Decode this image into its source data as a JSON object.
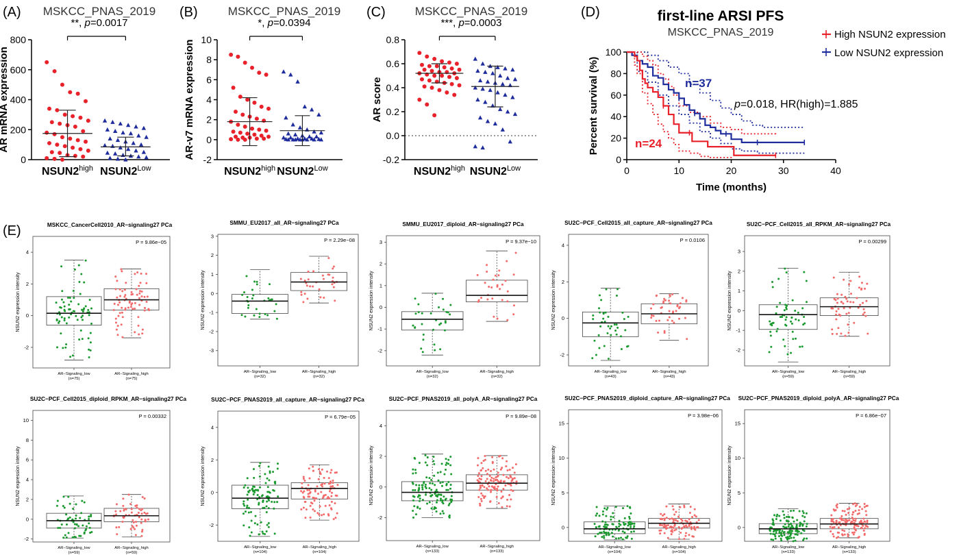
{
  "colors": {
    "high": "#e8212a",
    "low": "#1e2c9c",
    "green": "#1a9a2e",
    "pink": "#f46a6a",
    "black": "#111111"
  },
  "panels_top": [
    {
      "label": "(A)",
      "title": "MSKCC_PNAS_2019",
      "ylabel": "AR mRNA expression",
      "sig": "**, p=0.0017",
      "sig_stars": "**, ",
      "sig_p": "p",
      "sig_val": "=0.0017",
      "ylim": [
        0,
        800
      ],
      "yticks": [
        "0",
        "200",
        "400",
        "600",
        "800"
      ],
      "zero_line": false,
      "groups": [
        {
          "name": "NSUN2",
          "sup": "high",
          "marker": "circle",
          "mean": 175,
          "sd_low": 20,
          "sd_high": 330
        },
        {
          "name": "NSUN2",
          "sup": "Low",
          "marker": "triangle",
          "mean": 85,
          "sd_low": 25,
          "sd_high": 150
        }
      ]
    },
    {
      "label": "(B)",
      "title": "MSKCC_PNAS_2019",
      "ylabel": "AR-v7 mRNA expression",
      "sig": "*, p=0.0394",
      "sig_stars": "*, ",
      "sig_p": "p",
      "sig_val": "=0.0394",
      "ylim": [
        -2,
        10
      ],
      "yticks": [
        "-2",
        "0",
        "2",
        "4",
        "6",
        "8",
        "10"
      ],
      "zero_line": false,
      "groups": [
        {
          "name": "NSUN2",
          "sup": "high",
          "marker": "circle",
          "mean": 1.8,
          "sd_low": -0.6,
          "sd_high": 4.2
        },
        {
          "name": "NSUN2",
          "sup": "Low",
          "marker": "triangle",
          "mean": 0.9,
          "sd_low": -0.6,
          "sd_high": 2.4
        }
      ]
    },
    {
      "label": "(C)",
      "title": "MSKCC_PNAS_2019",
      "ylabel": "AR score",
      "sig": "***, p=0.0003",
      "sig_stars": "***, ",
      "sig_p": "p",
      "sig_val": "=0.0003",
      "ylim": [
        -0.2,
        0.8
      ],
      "yticks": [
        "-0.2",
        "0.0",
        "0.2",
        "0.4",
        "0.6",
        "0.8"
      ],
      "zero_line": true,
      "groups": [
        {
          "name": "NSUN2",
          "sup": "high",
          "marker": "circle",
          "mean": 0.52,
          "sd_low": 0.44,
          "sd_high": 0.6
        },
        {
          "name": "NSUN2",
          "sup": "Low",
          "marker": "triangle",
          "mean": 0.41,
          "sd_low": 0.24,
          "sd_high": 0.58
        }
      ]
    }
  ],
  "panel_d": {
    "label": "(D)",
    "title": "first-line ARSI PFS",
    "subtitle": "MSKCC_PNAS_2019",
    "ylabel": "Percent survival (%)",
    "xlabel": "Time (months)",
    "xlim": [
      0,
      40
    ],
    "ylim": [
      0,
      100
    ],
    "xticks": [
      "0",
      "10",
      "20",
      "30",
      "40"
    ],
    "yticks": [
      "0",
      "20",
      "40",
      "60",
      "80",
      "100"
    ],
    "legend": [
      "High NSUN2 expression",
      "Low NSUN2 expression"
    ],
    "n_high": "n=24",
    "n_low": "n=37",
    "stat_p": "p",
    "stat_rest": "=0.018, HR(high)=1.885",
    "high_steps": [
      [
        0,
        100
      ],
      [
        1.5,
        96
      ],
      [
        2,
        92
      ],
      [
        2.5,
        83
      ],
      [
        3,
        75
      ],
      [
        3.5,
        71
      ],
      [
        4,
        67
      ],
      [
        5,
        63
      ],
      [
        6,
        58
      ],
      [
        7,
        50
      ],
      [
        8,
        42
      ],
      [
        9,
        33
      ],
      [
        10,
        25
      ],
      [
        12,
        25
      ],
      [
        12.5,
        17
      ],
      [
        15,
        17
      ],
      [
        15.5,
        12
      ],
      [
        20,
        12
      ],
      [
        20.5,
        4
      ],
      [
        28.5,
        4
      ]
    ],
    "high_upper": [
      [
        0,
        100
      ],
      [
        2,
        100
      ],
      [
        3,
        96
      ],
      [
        4,
        92
      ],
      [
        5,
        88
      ],
      [
        6,
        80
      ],
      [
        7,
        75
      ],
      [
        8,
        68
      ],
      [
        9,
        60
      ],
      [
        10,
        50
      ],
      [
        12,
        44
      ],
      [
        14,
        40
      ],
      [
        16,
        34
      ],
      [
        18,
        30
      ],
      [
        20,
        28
      ],
      [
        22,
        24
      ],
      [
        28.5,
        22
      ]
    ],
    "high_lower": [
      [
        0,
        100
      ],
      [
        1.5,
        88
      ],
      [
        2,
        80
      ],
      [
        3,
        62
      ],
      [
        4,
        52
      ],
      [
        5,
        42
      ],
      [
        6,
        33
      ],
      [
        7,
        26
      ],
      [
        8,
        20
      ],
      [
        9,
        14
      ],
      [
        10,
        8
      ],
      [
        12,
        6
      ],
      [
        14,
        3
      ],
      [
        16,
        2
      ],
      [
        20,
        0
      ]
    ],
    "low_steps": [
      [
        0,
        100
      ],
      [
        1,
        97
      ],
      [
        2,
        92
      ],
      [
        3,
        89
      ],
      [
        4,
        86
      ],
      [
        5,
        78
      ],
      [
        6,
        76
      ],
      [
        7,
        70
      ],
      [
        8,
        65
      ],
      [
        9,
        62
      ],
      [
        10,
        57
      ],
      [
        11,
        51
      ],
      [
        12,
        46
      ],
      [
        13,
        43
      ],
      [
        14,
        38
      ],
      [
        15,
        32
      ],
      [
        16,
        30
      ],
      [
        17,
        27
      ],
      [
        18,
        24
      ],
      [
        20,
        19
      ],
      [
        22,
        16
      ],
      [
        25,
        16
      ],
      [
        34,
        16
      ]
    ],
    "low_upper": [
      [
        0,
        100
      ],
      [
        2,
        100
      ],
      [
        4,
        97
      ],
      [
        6,
        92
      ],
      [
        8,
        86
      ],
      [
        10,
        80
      ],
      [
        12,
        70
      ],
      [
        14,
        62
      ],
      [
        16,
        55
      ],
      [
        18,
        48
      ],
      [
        20,
        42
      ],
      [
        22,
        36
      ],
      [
        24,
        32
      ],
      [
        26,
        30
      ],
      [
        28,
        30
      ],
      [
        34,
        30
      ]
    ],
    "low_lower": [
      [
        0,
        100
      ],
      [
        2,
        82
      ],
      [
        4,
        72
      ],
      [
        6,
        60
      ],
      [
        8,
        50
      ],
      [
        10,
        42
      ],
      [
        12,
        34
      ],
      [
        14,
        26
      ],
      [
        16,
        20
      ],
      [
        18,
        15
      ],
      [
        20,
        10
      ],
      [
        22,
        8
      ],
      [
        25,
        6
      ],
      [
        34,
        6
      ]
    ]
  },
  "panel_e_label": "(E)",
  "box_plots": [
    {
      "title": "MSKCC_CancerCell2010_AR−signaling27 PCa",
      "p": "P = 9.86e−05",
      "ylabel": "NSUN2 expression intensity",
      "yticks": [
        -2,
        0,
        2,
        4
      ],
      "ylim": [
        -3.3,
        5.0
      ],
      "low": {
        "label": "AR−Signaling_low",
        "n": "(n=75)",
        "q1": -0.6,
        "med": 0.15,
        "q3": 1.2,
        "wlo": -2.8,
        "whi": 3.5,
        "count": 75
      },
      "high": {
        "label": "AR−Signaling_high",
        "n": "(n=75)",
        "q1": 0.35,
        "med": 1.0,
        "q3": 1.7,
        "wlo": -1.4,
        "whi": 2.95,
        "count": 75
      }
    },
    {
      "title": "SMMU_EU2017_all_AR−signaling27 PCa",
      "p": "P = 2.29e−08",
      "ylabel": "NSUN2 expression intensity",
      "yticks": [
        -3,
        -2,
        -1,
        0,
        1,
        2,
        3
      ],
      "ylim": [
        -3.8,
        3.1
      ],
      "low": {
        "label": "AR−Signaling_low",
        "n": "(n=32)",
        "q1": -1.05,
        "med": -0.4,
        "q3": -0.05,
        "wlo": -1.35,
        "whi": 1.25,
        "count": 32
      },
      "high": {
        "label": "AR−Signaling_high",
        "n": "(n=32)",
        "q1": 0.15,
        "med": 0.6,
        "q3": 1.1,
        "wlo": -0.5,
        "whi": 1.95,
        "count": 32
      }
    },
    {
      "title": "SMMU_EU2017_diploid_AR−signaling27 PCa",
      "p": "P = 9.37e−10",
      "ylabel": "NSUN2 expression intensity",
      "yticks": [
        -2,
        -1,
        0,
        1,
        2,
        3
      ],
      "ylim": [
        -2.7,
        3.3
      ],
      "low": {
        "label": "AR−Signaling_low",
        "n": "(n=32)",
        "q1": -1.05,
        "med": -0.55,
        "q3": -0.2,
        "wlo": -2.2,
        "whi": 0.65,
        "count": 32
      },
      "high": {
        "label": "AR−Signaling_high",
        "n": "(n=32)",
        "q1": 0.25,
        "med": 0.55,
        "q3": 1.25,
        "wlo": -0.65,
        "whi": 2.6,
        "count": 32
      }
    },
    {
      "title": "SU2C−PCF_Cell2015_all_capture_AR−signaling27 PCa",
      "p": "P = 0.0106",
      "ylabel": "NSUN2 expression intensity",
      "yticks": [
        -2,
        0,
        2,
        4
      ],
      "ylim": [
        -2.6,
        4.6
      ],
      "low": {
        "label": "AR−Signaling_low",
        "n": "(n=43)",
        "q1": -1.0,
        "med": -0.25,
        "q3": 0.35,
        "wlo": -2.3,
        "whi": 1.65,
        "count": 43
      },
      "high": {
        "label": "AR−Signaling_high",
        "n": "(n=43)",
        "q1": -0.3,
        "med": 0.25,
        "q3": 0.8,
        "wlo": -1.2,
        "whi": 1.35,
        "count": 43
      }
    },
    {
      "title": "SU2C−PCF_Cell2015_all_RPKM_AR−signaling27 PCa",
      "p": "P = 0.00299",
      "ylabel": "NSUN2 expression intensity",
      "yticks": [
        -2,
        -1,
        0,
        1,
        2,
        3
      ],
      "ylim": [
        -2.8,
        3.8
      ],
      "low": {
        "label": "AR−Signaling_low",
        "n": "(n=59)",
        "q1": -0.95,
        "med": -0.2,
        "q3": 0.3,
        "wlo": -2.6,
        "whi": 2.15,
        "count": 59
      },
      "high": {
        "label": "AR−Signaling_high",
        "n": "(n=59)",
        "q1": -0.25,
        "med": 0.2,
        "q3": 0.65,
        "wlo": -1.3,
        "whi": 1.95,
        "count": 59
      }
    },
    {
      "title": "SU2C−PCF_Cell2015_diploid_RPKM_AR−signaling27 PCa",
      "p": "P = 0.00332",
      "ylabel": "NSUN2 expression intensity",
      "yticks": [
        -2,
        0,
        2,
        4,
        6,
        8,
        10
      ],
      "ylim": [
        -2.3,
        11.0
      ],
      "low": {
        "label": "AR−Signaling_low",
        "n": "(n=59)",
        "q1": -0.9,
        "med": -0.15,
        "q3": 0.6,
        "wlo": -1.9,
        "whi": 2.35,
        "count": 59
      },
      "high": {
        "label": "AR−Signaling_high",
        "n": "(n=59)",
        "q1": -0.25,
        "med": 0.35,
        "q3": 1.1,
        "wlo": -1.8,
        "whi": 2.5,
        "count": 59
      }
    },
    {
      "title": "SU2C−PCF_PNAS2019_all_capture_AR−signaling27 PCa",
      "p": "P = 6.79e−05",
      "ylabel": "NSUN2 expression intensity",
      "yticks": [
        -2,
        0,
        2,
        4
      ],
      "ylim": [
        -3.0,
        5.0
      ],
      "low": {
        "label": "AR−Signaling_low",
        "n": "(n=104)",
        "q1": -1.0,
        "med": -0.35,
        "q3": 0.45,
        "wlo": -2.7,
        "whi": 1.85,
        "count": 104
      },
      "high": {
        "label": "AR−Signaling_high",
        "n": "(n=104)",
        "q1": -0.4,
        "med": 0.25,
        "q3": 0.6,
        "wlo": -1.7,
        "whi": 1.7,
        "count": 104
      }
    },
    {
      "title": "SU2C−PCF_PNAS2019_all_polyA_AR−signaling27 PCa",
      "p": "P = 9.89e−08",
      "ylabel": "NSUN2 expression intensity",
      "yticks": [
        -2,
        0,
        2,
        4
      ],
      "ylim": [
        -3.5,
        5.0
      ],
      "low": {
        "label": "AR−Signaling_low",
        "n": "(n=133)",
        "q1": -0.9,
        "med": -0.35,
        "q3": 0.35,
        "wlo": -2.0,
        "whi": 2.15,
        "count": 133
      },
      "high": {
        "label": "AR−Signaling_high",
        "n": "(n=133)",
        "q1": -0.2,
        "med": 0.25,
        "q3": 0.8,
        "wlo": -1.4,
        "whi": 2.05,
        "count": 133
      }
    },
    {
      "title": "SU2C−PCF_PNAS2019_diploid_capture_AR−signaling27 PCa",
      "p": "P = 3.98e−06",
      "ylabel": "NSUN2 expression intensity",
      "yticks": [
        0,
        5,
        10,
        15
      ],
      "ylim": [
        -2.0,
        17.0
      ],
      "low": {
        "label": "AR−Signaling_low",
        "n": "(n=104)",
        "q1": -0.9,
        "med": -0.2,
        "q3": 0.8,
        "wlo": -1.8,
        "whi": 3.1,
        "count": 104
      },
      "high": {
        "label": "AR−Signaling_high",
        "n": "(n=104)",
        "q1": -0.1,
        "med": 0.6,
        "q3": 1.3,
        "wlo": -1.7,
        "whi": 3.4,
        "count": 104
      }
    },
    {
      "title": "SU2C−PCF_PNAS2019_diploid_polyA_AR−signaling27 PCa",
      "p": "P = 6.86e−07",
      "ylabel": "NSUN2 expression intensity",
      "yticks": [
        0,
        5,
        10,
        15
      ],
      "ylim": [
        -2.0,
        17.0
      ],
      "low": {
        "label": "AR−Signaling_low",
        "n": "(n=133)",
        "q1": -0.9,
        "med": -0.2,
        "q3": 0.55,
        "wlo": -2.0,
        "whi": 2.7,
        "count": 133
      },
      "high": {
        "label": "AR−Signaling_high",
        "n": "(n=133)",
        "q1": -0.2,
        "med": 0.5,
        "q3": 1.3,
        "wlo": -1.5,
        "whi": 3.5,
        "count": 133
      }
    }
  ],
  "chart_data": [
    {
      "type": "scatter",
      "panel": "(A)",
      "title": "MSKCC_PNAS_2019",
      "ylabel": "AR mRNA expression",
      "ylim": [
        0,
        800
      ],
      "categories": [
        "NSUN2high",
        "NSUN2Low"
      ],
      "series": [
        {
          "name": "NSUN2high",
          "values": [
            650,
            590,
            500,
            450,
            440,
            390,
            340,
            330,
            300,
            290,
            280,
            260,
            250,
            240,
            230,
            220,
            190,
            180,
            170,
            150,
            140,
            130,
            120,
            110,
            100,
            90,
            80,
            70,
            60,
            50,
            45,
            30,
            25,
            20,
            10,
            5,
            0
          ]
        },
        {
          "name": "NSUN2Low",
          "values": [
            260,
            250,
            240,
            230,
            220,
            210,
            200,
            190,
            180,
            175,
            160,
            150,
            140,
            130,
            120,
            110,
            100,
            95,
            90,
            80,
            70,
            60,
            50,
            45,
            40,
            30,
            25,
            20,
            15,
            10,
            5,
            0
          ]
        }
      ]
    },
    {
      "type": "scatter",
      "panel": "(B)",
      "title": "MSKCC_PNAS_2019",
      "ylabel": "AR-v7 mRNA expression",
      "ylim": [
        -2,
        10
      ],
      "categories": [
        "NSUN2high",
        "NSUN2Low"
      ],
      "series": [
        {
          "name": "NSUN2high",
          "values": [
            8.5,
            8.3,
            7.7,
            7.2,
            6.7,
            6.5,
            5.2,
            4.3,
            4.0,
            3.7,
            3.3,
            3.1,
            2.8,
            2.5,
            2.3,
            2.1,
            1.9,
            1.8,
            1.5,
            1.3,
            1.1,
            1.0,
            0.9,
            0.8,
            0.7,
            0.6,
            0.5,
            0.4,
            0.3,
            0.3,
            0.2,
            0.2,
            0.1,
            0.1,
            0.05,
            0.0,
            0.0
          ]
        },
        {
          "name": "NSUN2Low",
          "values": [
            6.8,
            6.5,
            5.8,
            3.3,
            3.0,
            2.5,
            2.2,
            1.5,
            1.2,
            1.0,
            0.8,
            0.7,
            0.6,
            0.5,
            0.4,
            0.3,
            0.3,
            0.2,
            0.2,
            0.1,
            0.1,
            0.1,
            0.05,
            0.05,
            0.0,
            0.0,
            0.0,
            0.0,
            0.0,
            0.0,
            0.0,
            0.0
          ]
        }
      ]
    },
    {
      "type": "scatter",
      "panel": "(C)",
      "title": "MSKCC_PNAS_2019",
      "ylabel": "AR score",
      "ylim": [
        -0.2,
        0.8
      ],
      "categories": [
        "NSUN2high",
        "NSUN2Low"
      ],
      "series": [
        {
          "name": "NSUN2high",
          "values": [
            0.69,
            0.66,
            0.64,
            0.62,
            0.61,
            0.6,
            0.59,
            0.58,
            0.58,
            0.57,
            0.56,
            0.55,
            0.55,
            0.54,
            0.53,
            0.53,
            0.52,
            0.52,
            0.51,
            0.5,
            0.5,
            0.49,
            0.48,
            0.47,
            0.46,
            0.45,
            0.44,
            0.43,
            0.42,
            0.41,
            0.4,
            0.38,
            0.36,
            0.34,
            0.3,
            0.26,
            0.17
          ]
        },
        {
          "name": "NSUN2Low",
          "values": [
            0.64,
            0.6,
            0.58,
            0.57,
            0.56,
            0.55,
            0.54,
            0.53,
            0.52,
            0.5,
            0.48,
            0.47,
            0.46,
            0.45,
            0.44,
            0.43,
            0.42,
            0.4,
            0.39,
            0.38,
            0.36,
            0.34,
            0.32,
            0.3,
            0.28,
            0.25,
            0.22,
            0.2,
            0.18,
            0.15,
            0.12,
            0.1,
            0.05,
            -0.05,
            -0.09,
            -0.1
          ]
        }
      ]
    },
    {
      "type": "line",
      "panel": "(D)",
      "title": "first-line ARSI PFS",
      "subtitle": "MSKCC_PNAS_2019",
      "xlabel": "Time (months)",
      "ylabel": "Percent survival (%)",
      "xlim": [
        0,
        40
      ],
      "ylim": [
        0,
        100
      ],
      "series": [
        {
          "name": "High NSUN2 expression"
        },
        {
          "name": "Low NSUN2 expression"
        }
      ]
    },
    {
      "type": "box",
      "panel": "(E)",
      "series": []
    }
  ]
}
